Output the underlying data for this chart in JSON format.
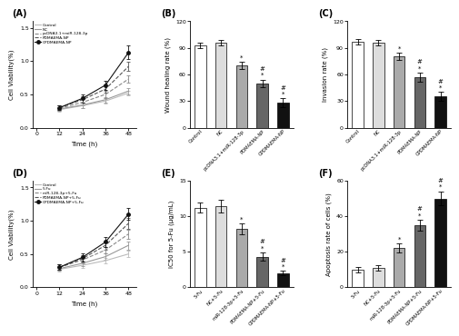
{
  "panel_A": {
    "time": [
      12,
      24,
      36,
      48
    ],
    "lines": [
      {
        "label": "Control",
        "values": [
          0.27,
          0.33,
          0.4,
          0.52
        ],
        "err": [
          0.03,
          0.04,
          0.04,
          0.04
        ],
        "color": "#bbbbbb",
        "ls": "-",
        "marker": null
      },
      {
        "label": "NC",
        "values": [
          0.28,
          0.34,
          0.42,
          0.55
        ],
        "err": [
          0.03,
          0.04,
          0.04,
          0.05
        ],
        "color": "#999999",
        "ls": "-",
        "marker": null
      },
      {
        "label": "pcDNA3.1+miR-128-3p",
        "values": [
          0.29,
          0.38,
          0.5,
          0.73
        ],
        "err": [
          0.04,
          0.05,
          0.05,
          0.06
        ],
        "color": "#888888",
        "ls": "--",
        "marker": null
      },
      {
        "label": "PDMAEMA-NP",
        "values": [
          0.3,
          0.42,
          0.58,
          0.92
        ],
        "err": [
          0.04,
          0.05,
          0.06,
          0.07
        ],
        "color": "#555555",
        "ls": "--",
        "marker": null
      },
      {
        "label": "CPDMAEMA-NP",
        "values": [
          0.3,
          0.44,
          0.64,
          1.13
        ],
        "err": [
          0.04,
          0.06,
          0.07,
          0.1
        ],
        "color": "#111111",
        "ls": "-",
        "marker": "o"
      }
    ],
    "ylabel": "Cell Viability(%)",
    "xlabel": "Time (h)",
    "ylim": [
      0.0,
      1.6
    ],
    "yticks": [
      0.0,
      0.5,
      1.0,
      1.5
    ],
    "xticks": [
      0,
      12,
      24,
      36,
      48
    ]
  },
  "panel_B": {
    "categories": [
      "Control",
      "NC",
      "pcDNA3.1+miR-128-3p",
      "PDMAEMA-NP",
      "CPDMAEMA-NP"
    ],
    "values": [
      93,
      96,
      70,
      50,
      28
    ],
    "errors": [
      3,
      3,
      4,
      4,
      5
    ],
    "colors": [
      "#ffffff",
      "#dddddd",
      "#aaaaaa",
      "#666666",
      "#111111"
    ],
    "ylabel": "Wound healing rate (%)",
    "ylim": [
      0,
      120
    ],
    "yticks": [
      0,
      30,
      60,
      90,
      120
    ],
    "annotations": [
      "",
      "",
      "*",
      "**\n##",
      "**\n##"
    ]
  },
  "panel_C": {
    "categories": [
      "Control",
      "NC",
      "pcDNA3.1+miR-128-3p",
      "PDMAEMA-NP",
      "CPDMAEMA-NP"
    ],
    "values": [
      97,
      96,
      80,
      57,
      35
    ],
    "errors": [
      3,
      3,
      4,
      5,
      5
    ],
    "colors": [
      "#ffffff",
      "#dddddd",
      "#aaaaaa",
      "#666666",
      "#111111"
    ],
    "ylabel": "Invasion rate (%)",
    "ylim": [
      0,
      120
    ],
    "yticks": [
      0,
      30,
      60,
      90,
      120
    ],
    "annotations": [
      "",
      "",
      "*",
      "**\n##",
      "**\n##"
    ]
  },
  "panel_D": {
    "time": [
      12,
      24,
      36,
      48
    ],
    "lines": [
      {
        "label": "Control",
        "values": [
          0.27,
          0.33,
          0.4,
          0.5
        ],
        "err": [
          0.03,
          0.04,
          0.04,
          0.05
        ],
        "color": "#bbbbbb",
        "ls": "-",
        "marker": null
      },
      {
        "label": "5-Fu",
        "values": [
          0.28,
          0.36,
          0.46,
          0.63
        ],
        "err": [
          0.03,
          0.04,
          0.05,
          0.06
        ],
        "color": "#999999",
        "ls": "-",
        "marker": null
      },
      {
        "label": "miR-128-3p+5-Fu",
        "values": [
          0.3,
          0.41,
          0.56,
          0.8
        ],
        "err": [
          0.04,
          0.05,
          0.05,
          0.07
        ],
        "color": "#888888",
        "ls": "--",
        "marker": null
      },
      {
        "label": "PDMAEMA-NP+5-Fu",
        "values": [
          0.3,
          0.43,
          0.63,
          0.96
        ],
        "err": [
          0.04,
          0.05,
          0.06,
          0.08
        ],
        "color": "#555555",
        "ls": "--",
        "marker": null
      },
      {
        "label": "CPDMAEMA-NP+5-Fu",
        "values": [
          0.3,
          0.45,
          0.68,
          1.1
        ],
        "err": [
          0.04,
          0.06,
          0.07,
          0.09
        ],
        "color": "#111111",
        "ls": "-",
        "marker": "o"
      }
    ],
    "ylabel": "Cell Viability(%)",
    "xlabel": "Time (h)",
    "ylim": [
      0.0,
      1.6
    ],
    "yticks": [
      0.0,
      0.5,
      1.0,
      1.5
    ],
    "xticks": [
      0,
      12,
      24,
      36,
      48
    ]
  },
  "panel_E": {
    "categories": [
      "5-Fu",
      "NC+5-Fu",
      "miR-128-3p+5-Fu",
      "PDMAEMA-NP+5-Fu",
      "CPDMAEMA-NP+5-Fu"
    ],
    "values": [
      11.2,
      11.4,
      8.2,
      4.3,
      2.0
    ],
    "errors": [
      0.7,
      0.9,
      0.8,
      0.6,
      0.3
    ],
    "colors": [
      "#ffffff",
      "#dddddd",
      "#aaaaaa",
      "#666666",
      "#111111"
    ],
    "ylabel": "IC50 for 5-Fu (μg/mL)",
    "ylim": [
      0,
      15
    ],
    "yticks": [
      0,
      5,
      10,
      15
    ],
    "annotations": [
      "",
      "",
      "*",
      "**\n##",
      "**\n##"
    ]
  },
  "panel_F": {
    "categories": [
      "5-Fu",
      "NC+5-Fu",
      "miR-128-3p+5-Fu",
      "PDMAEMA-NP+5-Fu",
      "CPDMAEMA-NP+5-Fu"
    ],
    "values": [
      10,
      11,
      22,
      35,
      50
    ],
    "errors": [
      1.5,
      1.5,
      2.5,
      3.0,
      4.0
    ],
    "colors": [
      "#ffffff",
      "#dddddd",
      "#aaaaaa",
      "#666666",
      "#111111"
    ],
    "ylabel": "Apoptosis rate of cells (%)",
    "ylim": [
      0,
      60
    ],
    "yticks": [
      0,
      20,
      40,
      60
    ],
    "annotations": [
      "",
      "",
      "*",
      "**\n##",
      "**\n##"
    ]
  }
}
